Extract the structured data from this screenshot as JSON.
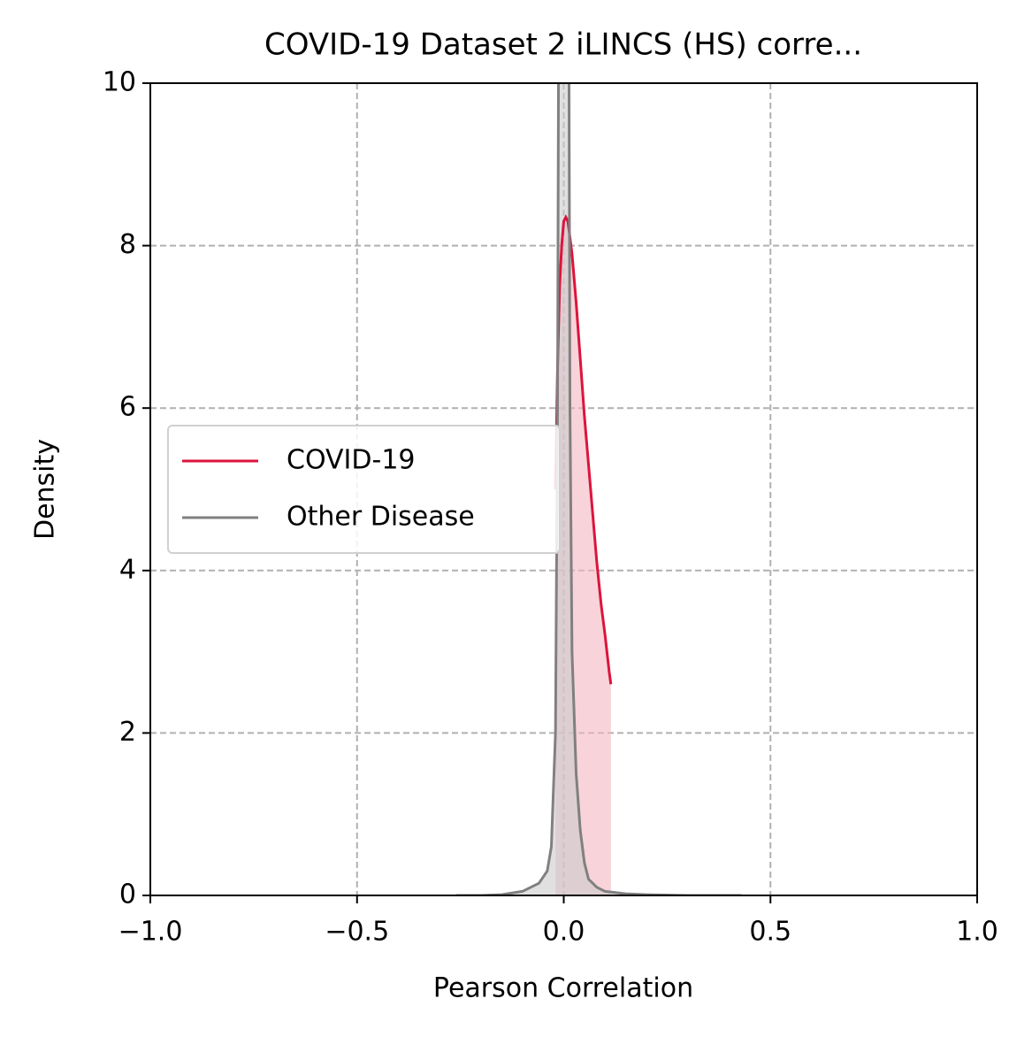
{
  "chart_data": {
    "type": "density",
    "title": "COVID-19 Dataset 2 iLINCS (HS) corre...",
    "x_label": "Pearson Correlation",
    "y_label": "Density",
    "xlim": [
      -1,
      1
    ],
    "ylim": [
      0,
      10
    ],
    "xticks": [
      {
        "value": -1,
        "label": "−1.0"
      },
      {
        "value": -0.5,
        "label": "−0.5"
      },
      {
        "value": 0,
        "label": "0.0"
      },
      0.5,
      {
        "value": 1,
        "label": "1.0"
      }
    ],
    "yticks": [
      0,
      2,
      4,
      6,
      8,
      10
    ],
    "grid": true,
    "legend": "center left",
    "series": [
      {
        "name": "COVID-19",
        "color": "#dc143c",
        "fill": "#f4b6c2",
        "x": [
          -0.02,
          -0.015,
          -0.01,
          -0.005,
          0,
          0.005,
          0.01,
          0.02,
          0.03,
          0.04,
          0.05,
          0.06,
          0.07,
          0.08,
          0.09,
          0.1,
          0.11,
          0.114
        ],
        "values": [
          5.0,
          6.5,
          7.5,
          8.0,
          8.3,
          8.35,
          8.3,
          7.9,
          7.3,
          6.6,
          5.9,
          5.3,
          4.7,
          4.1,
          3.6,
          3.2,
          2.75,
          2.6
        ]
      },
      {
        "name": "Other Disease",
        "color": "#808080",
        "fill": "#cccccc",
        "x": [
          -0.26,
          -0.2,
          -0.15,
          -0.1,
          -0.08,
          -0.06,
          -0.04,
          -0.03,
          -0.02,
          -0.015,
          -0.01,
          -0.005,
          0,
          0.005,
          0.01,
          0.015,
          0.02,
          0.03,
          0.04,
          0.05,
          0.06,
          0.08,
          0.1,
          0.15,
          0.2,
          0.3,
          0.43
        ],
        "values": [
          0,
          0,
          0.01,
          0.05,
          0.1,
          0.15,
          0.3,
          0.6,
          2,
          6,
          15,
          25,
          28,
          25,
          15,
          6,
          3,
          1.5,
          0.8,
          0.4,
          0.2,
          0.1,
          0.05,
          0.02,
          0.01,
          0,
          0
        ]
      }
    ]
  }
}
